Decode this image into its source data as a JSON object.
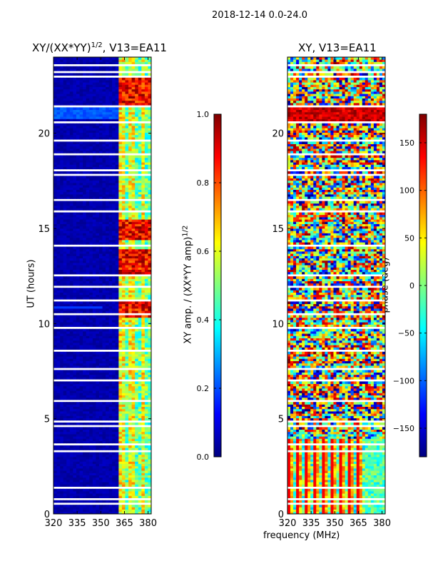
{
  "suptitle": "2018-12-14 0.0-24.0",
  "colors": {
    "jet": [
      "#00007f",
      "#0000ff",
      "#007fff",
      "#00ffff",
      "#7fff7f",
      "#ffff00",
      "#ff7f00",
      "#ff0000",
      "#7f0000"
    ]
  },
  "chart_data": [
    {
      "type": "heatmap",
      "title_main": "XY/(XX*YY)",
      "title_sup": "1/2",
      "title_rest": ", V13=EA11",
      "xlabel": "",
      "ylabel": "UT (hours)",
      "xlim": [
        320,
        382
      ],
      "ylim": [
        0,
        24
      ],
      "xticks": [
        320,
        335,
        350,
        365,
        380
      ],
      "yticks": [
        0,
        5,
        10,
        15,
        20
      ],
      "colorbar": {
        "label_main": "XY amp. / (XX*YY amp)",
        "label_sup": "1/2",
        "range": [
          0.0,
          1.0
        ],
        "ticks": [
          "0.0",
          "0.2",
          "0.4",
          "0.6",
          "0.8",
          "1.0"
        ],
        "tick_values": [
          0.0,
          0.2,
          0.4,
          0.6,
          0.8,
          1.0
        ]
      },
      "bright_band_mhz": [
        362,
        381
      ],
      "strong_hours": [
        22.7,
        22.2,
        21.9,
        21.7,
        15.1,
        14.8,
        13.6,
        13.3,
        12.9,
        10.9,
        10.7
      ],
      "gap_hours": [
        23.5,
        23.2,
        22.95,
        21.4,
        20.5,
        19.6,
        18.85,
        18.0,
        17.8,
        16.4,
        15.85,
        14.0,
        12.5,
        11.9,
        11.2,
        10.45,
        9.7,
        8.5,
        7.6,
        6.9,
        5.9,
        4.85,
        4.6,
        3.55,
        3.3,
        1.3,
        0.75,
        0.5
      ]
    },
    {
      "type": "heatmap",
      "title": "XY, V13=EA11",
      "xlabel": "frequency (MHz)",
      "ylabel": "",
      "xlim": [
        320,
        382
      ],
      "ylim": [
        0,
        24
      ],
      "xticks": [
        320,
        335,
        350,
        365,
        380
      ],
      "yticks": [
        0,
        5,
        10,
        15,
        20
      ],
      "colorbar": {
        "label": "phase (deg)",
        "range": [
          -180,
          180
        ],
        "ticks": [
          "−150",
          "−100",
          "−50",
          "0",
          "50",
          "100",
          "150"
        ],
        "tick_values": [
          -150,
          -100,
          -50,
          0,
          50,
          100,
          150
        ]
      },
      "red_band_hours": [
        20.6,
        21.4
      ],
      "gap_hours": [
        23.5,
        23.2,
        22.95,
        21.4,
        20.5,
        19.6,
        18.85,
        18.0,
        17.8,
        16.4,
        15.85,
        14.0,
        12.5,
        11.9,
        11.2,
        10.45,
        9.7,
        8.5,
        7.6,
        6.9,
        5.9,
        4.85,
        4.6,
        3.55,
        3.3,
        1.3,
        0.75,
        0.5
      ]
    }
  ]
}
